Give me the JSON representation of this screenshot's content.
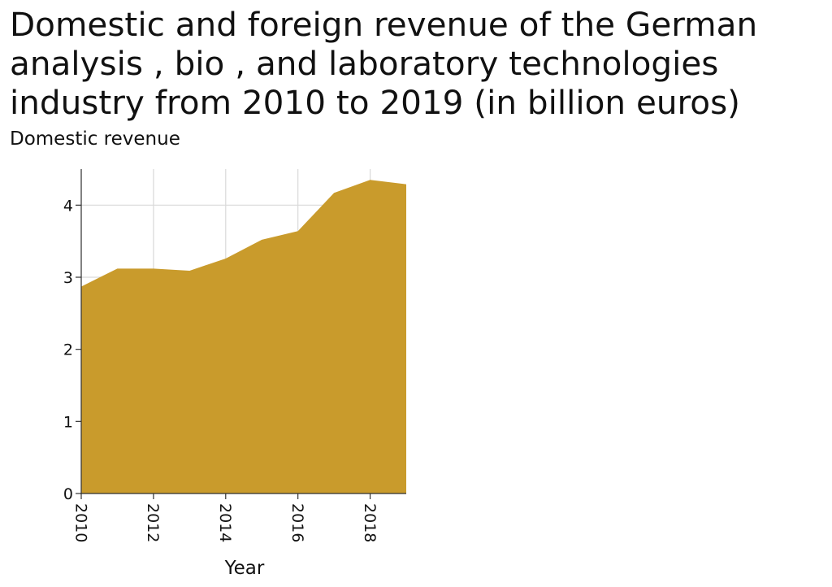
{
  "chart_data": {
    "type": "area",
    "title": "Domestic and foreign revenue of the German analysis , bio , and laboratory technologies industry from 2010 to 2019 (in billion euros)",
    "xlabel": "Year",
    "ylabel": "Domestic revenue",
    "x": [
      2010,
      2011,
      2012,
      2013,
      2014,
      2015,
      2016,
      2017,
      2018,
      2019
    ],
    "values": [
      2.87,
      3.12,
      3.12,
      3.09,
      3.26,
      3.52,
      3.64,
      4.17,
      4.35,
      4.29
    ],
    "xlim": [
      2010,
      2019
    ],
    "ylim": [
      0,
      4.5
    ],
    "x_ticks": [
      "2010",
      "2012",
      "2014",
      "2016",
      "2018"
    ],
    "y_ticks": [
      "0",
      "1",
      "2",
      "3",
      "4"
    ],
    "grid": true,
    "fill_color": "#c99b2c",
    "grid_color": "#d9d9d9"
  }
}
